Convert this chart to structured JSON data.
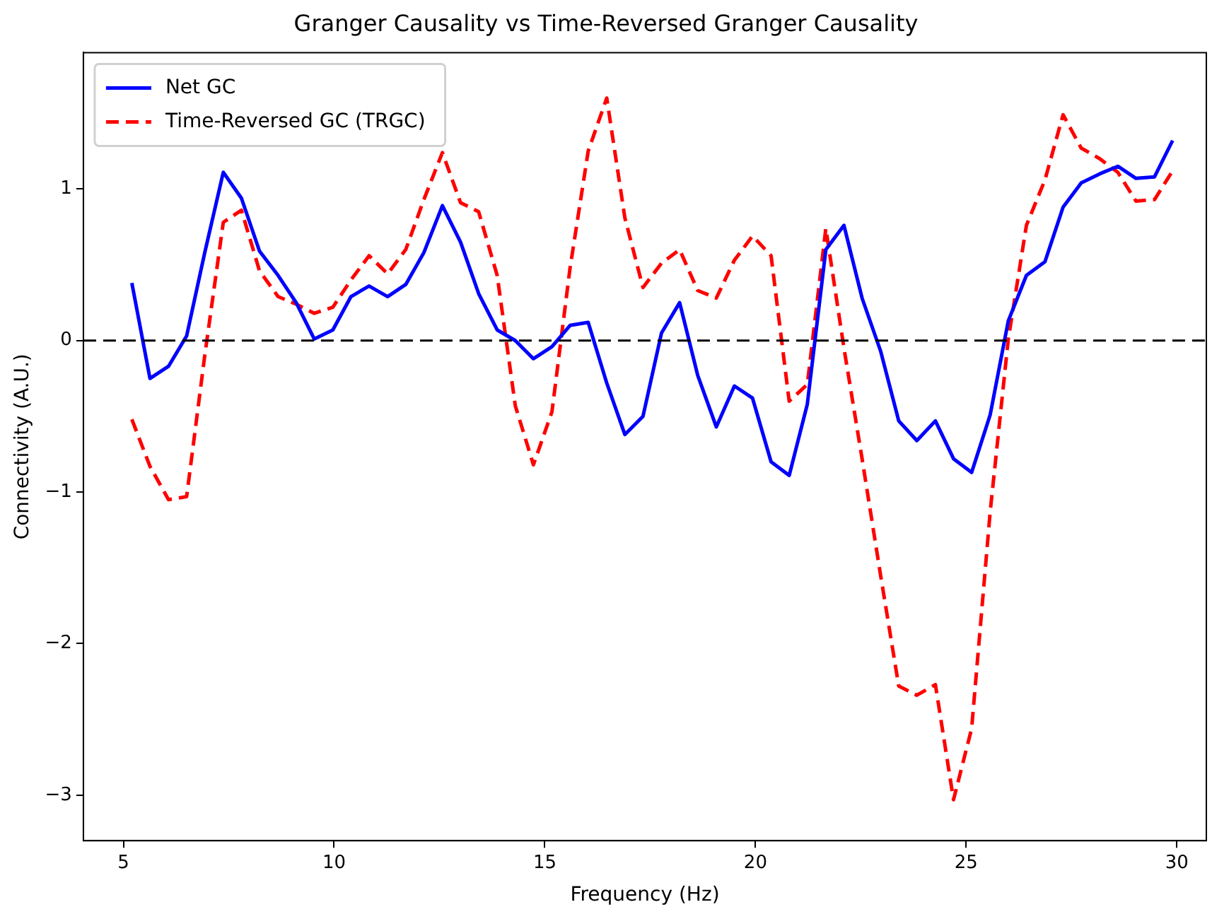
{
  "chart_data": {
    "type": "line",
    "title": "Granger Causality vs Time-Reversed Granger Causality",
    "xlabel": "Frequency (Hz)",
    "ylabel": "Connectivity (A.U.)",
    "x": [
      5.2,
      5.63,
      6.07,
      6.5,
      6.93,
      7.37,
      7.8,
      8.23,
      8.67,
      9.1,
      9.53,
      9.97,
      10.4,
      10.83,
      11.27,
      11.7,
      12.13,
      12.57,
      13.0,
      13.43,
      13.87,
      14.3,
      14.73,
      15.17,
      15.6,
      16.03,
      16.47,
      16.9,
      17.33,
      17.77,
      18.2,
      18.63,
      19.07,
      19.5,
      19.93,
      20.37,
      20.8,
      21.23,
      21.67,
      22.1,
      22.53,
      22.97,
      23.4,
      23.83,
      24.27,
      24.7,
      25.13,
      25.57,
      26.0,
      26.43,
      26.87,
      27.3,
      27.73,
      28.17,
      28.6,
      29.03,
      29.47,
      29.9
    ],
    "series": [
      {
        "name": "Net GC",
        "color": "#0000ff",
        "line_style": "solid",
        "values": [
          0.38,
          -0.25,
          -0.17,
          0.03,
          0.58,
          1.11,
          0.94,
          0.59,
          0.43,
          0.25,
          0.01,
          0.07,
          0.29,
          0.36,
          0.29,
          0.37,
          0.58,
          0.89,
          0.65,
          0.31,
          0.07,
          0.0,
          -0.12,
          -0.04,
          0.1,
          0.12,
          -0.28,
          -0.62,
          -0.5,
          0.05,
          0.25,
          -0.23,
          -0.57,
          -0.3,
          -0.38,
          -0.8,
          -0.89,
          -0.42,
          0.6,
          0.76,
          0.28,
          -0.07,
          -0.53,
          -0.66,
          -0.53,
          -0.78,
          -0.87,
          -0.49,
          0.13,
          0.43,
          0.52,
          0.88,
          1.04,
          1.1,
          1.15,
          1.07,
          1.08,
          1.32
        ]
      },
      {
        "name": "Time-Reversed GC (TRGC)",
        "color": "#ff0000",
        "line_style": "dashed",
        "values": [
          -0.52,
          -0.83,
          -1.05,
          -1.03,
          -0.1,
          0.78,
          0.86,
          0.46,
          0.29,
          0.24,
          0.18,
          0.22,
          0.4,
          0.56,
          0.44,
          0.6,
          0.93,
          1.24,
          0.91,
          0.85,
          0.43,
          -0.43,
          -0.82,
          -0.47,
          0.48,
          1.25,
          1.6,
          0.81,
          0.35,
          0.51,
          0.6,
          0.33,
          0.28,
          0.53,
          0.69,
          0.56,
          -0.4,
          -0.29,
          0.74,
          -0.05,
          -0.78,
          -1.55,
          -2.28,
          -2.34,
          -2.27,
          -3.03,
          -2.56,
          -1.13,
          0.01,
          0.76,
          1.06,
          1.49,
          1.27,
          1.2,
          1.11,
          0.92,
          0.93,
          1.12
        ]
      }
    ],
    "xlim": [
      4.05,
      30.7
    ],
    "xticks": [
      5,
      10,
      15,
      20,
      25,
      30
    ],
    "ylim": [
      -3.3,
      1.9
    ],
    "yticks": [
      -3,
      -2,
      -1,
      0,
      1
    ],
    "ref_lines": [
      {
        "axis": "y",
        "value": 0,
        "color": "#000000",
        "line_style": "dashed"
      }
    ],
    "grid": false,
    "legend": "top left",
    "marker": "none"
  }
}
